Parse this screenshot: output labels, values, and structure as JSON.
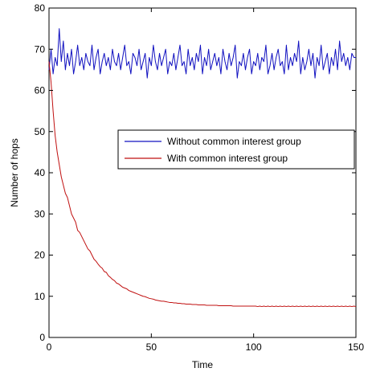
{
  "chart_data": {
    "type": "line",
    "xlabel": "Time",
    "ylabel": "Number of hops",
    "xlim": [
      0,
      150
    ],
    "ylim": [
      0,
      80
    ],
    "xticks": [
      0,
      50,
      100,
      150
    ],
    "yticks": [
      0,
      10,
      20,
      30,
      40,
      50,
      60,
      70,
      80
    ],
    "grid": false,
    "legend_position": "center-right",
    "series": [
      {
        "name": "Without common interest group",
        "color": "#1010c0",
        "x": [
          0,
          1,
          2,
          3,
          4,
          5,
          6,
          7,
          8,
          9,
          10,
          11,
          12,
          13,
          14,
          15,
          16,
          17,
          18,
          19,
          20,
          21,
          22,
          23,
          24,
          25,
          26,
          27,
          28,
          29,
          30,
          31,
          32,
          33,
          34,
          35,
          36,
          37,
          38,
          39,
          40,
          41,
          42,
          43,
          44,
          45,
          46,
          47,
          48,
          49,
          50,
          51,
          52,
          53,
          54,
          55,
          56,
          57,
          58,
          59,
          60,
          61,
          62,
          63,
          64,
          65,
          66,
          67,
          68,
          69,
          70,
          71,
          72,
          73,
          74,
          75,
          76,
          77,
          78,
          79,
          80,
          81,
          82,
          83,
          84,
          85,
          86,
          87,
          88,
          89,
          90,
          91,
          92,
          93,
          94,
          95,
          96,
          97,
          98,
          99,
          100,
          101,
          102,
          103,
          104,
          105,
          106,
          107,
          108,
          109,
          110,
          111,
          112,
          113,
          114,
          115,
          116,
          117,
          118,
          119,
          120,
          121,
          122,
          123,
          124,
          125,
          126,
          127,
          128,
          129,
          130,
          131,
          132,
          133,
          134,
          135,
          136,
          137,
          138,
          139,
          140,
          141,
          142,
          143,
          144,
          145,
          146,
          147,
          148,
          149,
          150
        ],
        "y": [
          65,
          70,
          64,
          68,
          66,
          75,
          67,
          72,
          65,
          69,
          66,
          70,
          64,
          67,
          71,
          66,
          68,
          65,
          69,
          67,
          66,
          71,
          65,
          68,
          70,
          64,
          67,
          69,
          66,
          68,
          65,
          70,
          67,
          66,
          69,
          65,
          68,
          71,
          66,
          67,
          64,
          69,
          68,
          66,
          70,
          65,
          67,
          69,
          63,
          68,
          66,
          71,
          67,
          65,
          69,
          66,
          68,
          70,
          64,
          67,
          66,
          69,
          65,
          68,
          71,
          66,
          67,
          64,
          70,
          66,
          68,
          65,
          69,
          67,
          71,
          64,
          68,
          66,
          70,
          65,
          67,
          69,
          66,
          68,
          64,
          70,
          67,
          65,
          69,
          66,
          68,
          71,
          63,
          67,
          66,
          69,
          65,
          68,
          70,
          64,
          67,
          66,
          69,
          65,
          68,
          67,
          71,
          64,
          66,
          69,
          65,
          68,
          70,
          66,
          67,
          64,
          71,
          65,
          68,
          66,
          69,
          67,
          72,
          64,
          68,
          65,
          67,
          70,
          66,
          69,
          63,
          68,
          66,
          71,
          65,
          67,
          69,
          64,
          68,
          66,
          70,
          65,
          72,
          67,
          69,
          66,
          68,
          65,
          69,
          68,
          68
        ]
      },
      {
        "name": "With common interest group",
        "color": "#c01010",
        "x": [
          0,
          1,
          2,
          3,
          4,
          5,
          6,
          7,
          8,
          9,
          10,
          11,
          12,
          13,
          14,
          15,
          16,
          17,
          18,
          19,
          20,
          21,
          22,
          23,
          24,
          25,
          26,
          27,
          28,
          29,
          30,
          31,
          32,
          33,
          34,
          35,
          36,
          37,
          38,
          39,
          40,
          41,
          42,
          43,
          44,
          45,
          46,
          47,
          48,
          49,
          50,
          51,
          52,
          53,
          54,
          55,
          56,
          57,
          58,
          59,
          60,
          61,
          62,
          63,
          64,
          65,
          66,
          67,
          68,
          69,
          70,
          71,
          72,
          73,
          74,
          75,
          76,
          77,
          78,
          79,
          80,
          81,
          82,
          83,
          84,
          85,
          86,
          87,
          88,
          89,
          90,
          91,
          92,
          93,
          94,
          95,
          96,
          97,
          98,
          99,
          100,
          101,
          102,
          103,
          104,
          105,
          106,
          107,
          108,
          109,
          110,
          111,
          112,
          113,
          114,
          115,
          116,
          117,
          118,
          119,
          120,
          121,
          122,
          123,
          124,
          125,
          126,
          127,
          128,
          129,
          130,
          131,
          132,
          133,
          134,
          135,
          136,
          137,
          138,
          139,
          140,
          141,
          142,
          143,
          144,
          145,
          146,
          147,
          148,
          149,
          150
        ],
        "y": [
          67,
          62,
          55,
          49,
          45,
          42,
          39,
          37,
          35,
          34,
          32,
          30,
          29,
          28,
          26,
          25.5,
          24.5,
          23.5,
          22.5,
          21.5,
          21,
          20,
          19,
          18.5,
          17.8,
          17.2,
          16.8,
          16,
          15.8,
          15,
          14.6,
          14.1,
          13.8,
          13.2,
          13,
          12.6,
          12.2,
          12,
          11.8,
          11.4,
          11.2,
          11,
          10.8,
          10.6,
          10.4,
          10.2,
          10,
          9.9,
          9.7,
          9.5,
          9.4,
          9.3,
          9.1,
          9,
          8.9,
          8.8,
          8.8,
          8.7,
          8.6,
          8.5,
          8.5,
          8.4,
          8.4,
          8.3,
          8.3,
          8.2,
          8.2,
          8.1,
          8.1,
          8.1,
          8,
          8,
          8,
          7.9,
          7.9,
          7.9,
          7.9,
          7.8,
          7.8,
          7.8,
          7.8,
          7.8,
          7.8,
          7.7,
          7.7,
          7.7,
          7.7,
          7.7,
          7.7,
          7.7,
          7.6,
          7.6,
          7.6,
          7.6,
          7.6,
          7.6,
          7.6,
          7.6,
          7.6,
          7.6,
          7.6,
          7.6,
          7.5,
          7.6,
          7.5,
          7.6,
          7.5,
          7.6,
          7.5,
          7.6,
          7.5,
          7.6,
          7.5,
          7.6,
          7.5,
          7.6,
          7.5,
          7.6,
          7.5,
          7.6,
          7.5,
          7.6,
          7.5,
          7.6,
          7.5,
          7.6,
          7.5,
          7.6,
          7.5,
          7.6,
          7.5,
          7.6,
          7.5,
          7.6,
          7.5,
          7.6,
          7.5,
          7.6,
          7.5,
          7.6,
          7.5,
          7.6,
          7.5,
          7.6,
          7.5,
          7.6,
          7.5,
          7.6,
          7.5,
          7.6,
          7.5
        ]
      }
    ]
  }
}
